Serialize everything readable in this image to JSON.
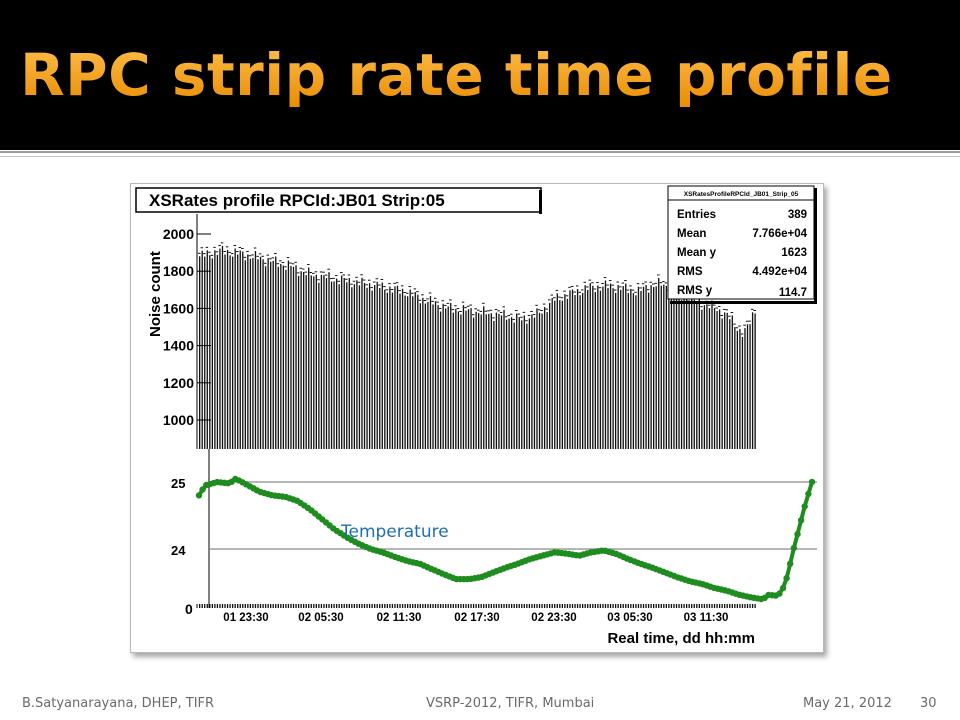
{
  "slide": {
    "title": "RPC strip rate time profile",
    "footer_left": "B.Satyanarayana, DHEP, TIFR",
    "footer_center": "VSRP-2012, TIFR, Mumbai",
    "footer_date": "May 21, 2012",
    "page_number": "30",
    "colors": {
      "title": "#f7a21b",
      "header_bg": "#000000",
      "temperature": "#1e8c1e"
    }
  },
  "chart_data": [
    {
      "type": "bar",
      "title": "XSRates profile  RPCId:JB01 Strip:05",
      "ylabel": "Noise count",
      "xlabel": "Real time, dd hh:mm",
      "ylim": [
        0,
        2100
      ],
      "yticks": [
        "2000",
        "1800",
        "1600",
        "1400",
        "1200",
        "1000"
      ],
      "xticks": [
        "01 23:30",
        "02 05:30",
        "02 11:30",
        "02 17:30",
        "02 23:30",
        "03 05:30",
        "03 11:30"
      ],
      "ytick_zero": "0",
      "stats_box": {
        "name": "XSRatesProfileRPCId_JB01_Strip_05",
        "rows": [
          {
            "label": "Entries",
            "value": "389"
          },
          {
            "label": "Mean",
            "value": "7.766e+04"
          },
          {
            "label": "Mean y",
            "value": "1623"
          },
          {
            "label": "RMS",
            "value": "4.492e+04"
          },
          {
            "label": "RMS y",
            "value": "114.7"
          }
        ]
      },
      "profile": [
        [
          0,
          1880
        ],
        [
          0.04,
          1910
        ],
        [
          0.08,
          1890
        ],
        [
          0.12,
          1860
        ],
        [
          0.16,
          1830
        ],
        [
          0.2,
          1780
        ],
        [
          0.26,
          1750
        ],
        [
          0.32,
          1720
        ],
        [
          0.37,
          1690
        ],
        [
          0.41,
          1640
        ],
        [
          0.45,
          1600
        ],
        [
          0.5,
          1580
        ],
        [
          0.55,
          1560
        ],
        [
          0.58,
          1540
        ],
        [
          0.61,
          1570
        ],
        [
          0.64,
          1650
        ],
        [
          0.67,
          1680
        ],
        [
          0.7,
          1710
        ],
        [
          0.73,
          1720
        ],
        [
          0.76,
          1710
        ],
        [
          0.79,
          1690
        ],
        [
          0.81,
          1720
        ],
        [
          0.83,
          1730
        ],
        [
          0.85,
          1710
        ],
        [
          0.87,
          1660
        ],
        [
          0.89,
          1640
        ],
        [
          0.91,
          1620
        ],
        [
          0.93,
          1600
        ],
        [
          0.95,
          1560
        ],
        [
          0.96,
          1530
        ],
        [
          0.97,
          1490
        ],
        [
          0.98,
          1460
        ],
        [
          0.99,
          1520
        ],
        [
          1.0,
          1600
        ]
      ]
    },
    {
      "type": "line",
      "series_label": "Temperature",
      "yticks": [
        "25",
        "24"
      ],
      "ylim": [
        23.15,
        25.5
      ],
      "points": [
        [
          0,
          24.8
        ],
        [
          0.01,
          24.95
        ],
        [
          0.03,
          25.0
        ],
        [
          0.05,
          24.98
        ],
        [
          0.06,
          25.05
        ],
        [
          0.08,
          24.95
        ],
        [
          0.1,
          24.85
        ],
        [
          0.12,
          24.8
        ],
        [
          0.14,
          24.78
        ],
        [
          0.16,
          24.72
        ],
        [
          0.18,
          24.6
        ],
        [
          0.2,
          24.45
        ],
        [
          0.22,
          24.3
        ],
        [
          0.24,
          24.18
        ],
        [
          0.26,
          24.08
        ],
        [
          0.28,
          24.0
        ],
        [
          0.3,
          23.95
        ],
        [
          0.32,
          23.88
        ],
        [
          0.34,
          23.82
        ],
        [
          0.36,
          23.78
        ],
        [
          0.38,
          23.7
        ],
        [
          0.4,
          23.62
        ],
        [
          0.42,
          23.55
        ],
        [
          0.44,
          23.55
        ],
        [
          0.46,
          23.58
        ],
        [
          0.48,
          23.65
        ],
        [
          0.5,
          23.72
        ],
        [
          0.52,
          23.78
        ],
        [
          0.54,
          23.85
        ],
        [
          0.56,
          23.9
        ],
        [
          0.58,
          23.95
        ],
        [
          0.6,
          23.93
        ],
        [
          0.62,
          23.9
        ],
        [
          0.64,
          23.95
        ],
        [
          0.66,
          23.98
        ],
        [
          0.68,
          23.93
        ],
        [
          0.7,
          23.85
        ],
        [
          0.72,
          23.78
        ],
        [
          0.74,
          23.72
        ],
        [
          0.76,
          23.65
        ],
        [
          0.78,
          23.58
        ],
        [
          0.8,
          23.52
        ],
        [
          0.82,
          23.48
        ],
        [
          0.84,
          23.42
        ],
        [
          0.86,
          23.38
        ],
        [
          0.88,
          23.32
        ],
        [
          0.9,
          23.28
        ],
        [
          0.92,
          23.25
        ],
        [
          0.93,
          23.32
        ],
        [
          0.94,
          23.3
        ],
        [
          0.95,
          23.35
        ],
        [
          0.96,
          23.6
        ],
        [
          0.97,
          24.0
        ],
        [
          0.98,
          24.35
        ],
        [
          0.99,
          24.7
        ],
        [
          1.0,
          25.0
        ]
      ]
    }
  ]
}
